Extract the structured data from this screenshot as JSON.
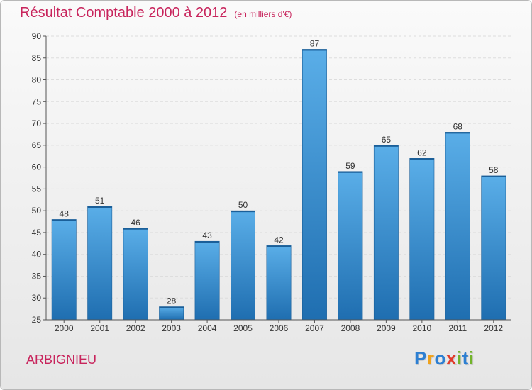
{
  "header": {
    "title": "Résultat Comptable 2000 à 2012",
    "subtitle": "(en milliers d'€)"
  },
  "commune": "ARBIGNIEU",
  "brand": {
    "letters": [
      "P",
      "r",
      "o",
      "x",
      "i",
      "t",
      "i"
    ]
  },
  "colors": {
    "title": "#c8245c",
    "bar_top": "#5aaee8",
    "bar_bottom": "#1f6eb0",
    "grid": "#dddddd",
    "axis": "#555555"
  },
  "chart_data": {
    "type": "bar",
    "title": "Résultat Comptable 2000 à 2012",
    "subtitle": "(en milliers d'€)",
    "categories": [
      "2000",
      "2001",
      "2002",
      "2003",
      "2004",
      "2005",
      "2006",
      "2007",
      "2008",
      "2009",
      "2010",
      "2011",
      "2012"
    ],
    "values": [
      48,
      51,
      46,
      28,
      43,
      50,
      42,
      87,
      59,
      65,
      62,
      68,
      58
    ],
    "ylim": [
      25,
      90
    ],
    "yticks": [
      25,
      30,
      35,
      40,
      45,
      50,
      55,
      60,
      65,
      70,
      75,
      80,
      85,
      90
    ],
    "xlabel": "",
    "ylabel": "",
    "grid": true,
    "data_labels": true
  }
}
